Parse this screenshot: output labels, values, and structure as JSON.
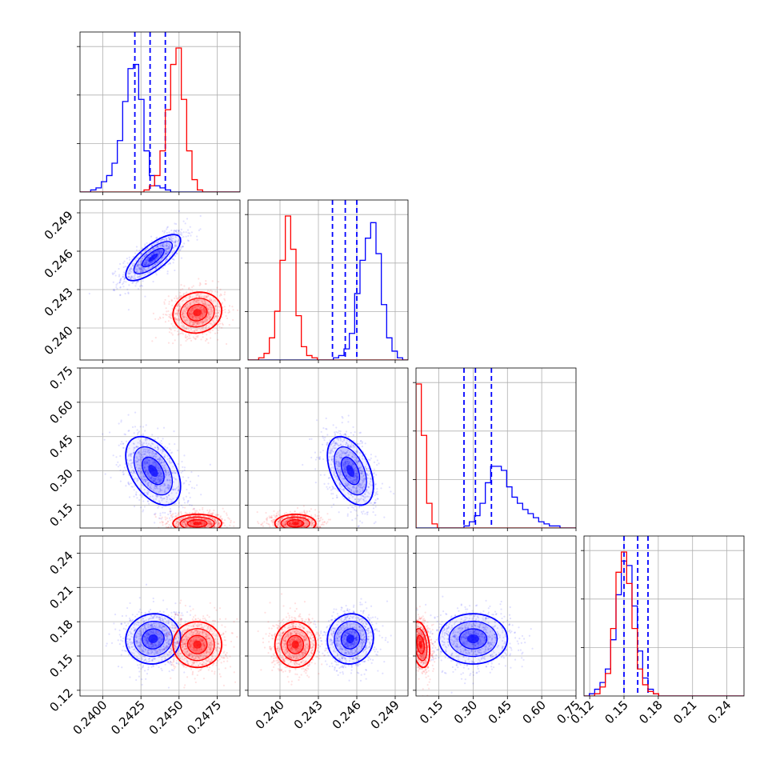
{
  "colors": {
    "blue_series": "#0000ff",
    "red_series": "#ff0000",
    "grid": "#b0b0b0"
  },
  "chart_data": {
    "type": "corner",
    "parameters": [
      {
        "id": "p1",
        "range": [
          0.2385,
          0.249
        ],
        "ticks": [
          0.24,
          0.2425,
          0.245,
          0.2475
        ],
        "tick_labels": [
          "0.2400",
          "0.2425",
          "0.2450",
          "0.2475"
        ]
      },
      {
        "id": "p2",
        "range": [
          0.2375,
          0.25
        ],
        "ticks": [
          0.24,
          0.243,
          0.246,
          0.249
        ],
        "tick_labels": [
          "0.240",
          "0.243",
          "0.246",
          "0.249"
        ]
      },
      {
        "id": "p3",
        "range": [
          0.05,
          0.75
        ],
        "ticks": [
          0.15,
          0.3,
          0.45,
          0.6,
          0.75
        ],
        "tick_labels": [
          "0.15",
          "0.30",
          "0.45",
          "0.60",
          "0.75"
        ]
      },
      {
        "id": "p4",
        "range": [
          0.115,
          0.255
        ],
        "ticks": [
          0.12,
          0.15,
          0.18,
          0.21,
          0.24
        ],
        "tick_labels": [
          "0.12",
          "0.15",
          "0.18",
          "0.21",
          "0.24"
        ]
      }
    ],
    "grid": true,
    "series": [
      {
        "color": "#0000ff",
        "means": [
          0.2433,
          0.2455,
          0.3,
          0.165
        ],
        "stds": [
          0.0009,
          0.0009,
          0.075,
          0.011
        ],
        "correlations": {
          "1-0": 0.75,
          "2-0": -0.45,
          "2-1": -0.45,
          "3-0": 0.05,
          "3-1": 0.05,
          "3-2": 0.0
        },
        "quantiles": [
          [
            0.2421,
            0.2431,
            0.2441
          ],
          [
            0.2441,
            0.2451,
            0.246
          ],
          [
            0.26,
            0.31,
            0.38
          ],
          [
            0.15,
            0.162,
            0.171
          ]
        ],
        "hist_1d": [
          {
            "edges": [
              0.2385,
              0.249
            ],
            "counts": [
              0,
              0,
              1,
              2,
              5,
              8,
              14,
              25,
              44,
              60,
              62,
              45,
              20,
              8,
              3,
              2,
              1,
              0,
              0,
              0,
              0,
              0,
              0,
              0,
              0,
              0,
              0,
              0,
              0,
              0
            ]
          },
          {
            "edges": [
              0.2375,
              0.25
            ],
            "counts": [
              0,
              0,
              0,
              0,
              0,
              0,
              0,
              0,
              0,
              0,
              0,
              0,
              0,
              0,
              0,
              0,
              1,
              2,
              5,
              12,
              30,
              45,
              55,
              62,
              48,
              25,
              10,
              4,
              1,
              0
            ]
          },
          {
            "edges": [
              0.05,
              0.75
            ],
            "counts": [
              0,
              0,
              0,
              0,
              0,
              0,
              0,
              0,
              0,
              1,
              3,
              6,
              12,
              22,
              30,
              30,
              28,
              20,
              15,
              12,
              9,
              7,
              5,
              3,
              2,
              1,
              1,
              0,
              0,
              0
            ]
          },
          {
            "edges": [
              0.115,
              0.255
            ],
            "counts": [
              0,
              1,
              3,
              6,
              12,
              25,
              45,
              60,
              58,
              40,
              20,
              8,
              3,
              1,
              0,
              0,
              0,
              0,
              0,
              0,
              0,
              0,
              0,
              0,
              0,
              0,
              0,
              0,
              0,
              0
            ]
          }
        ]
      },
      {
        "color": "#ff0000",
        "means": [
          0.2462,
          0.2412,
          0.07,
          0.16
        ],
        "stds": [
          0.0008,
          0.0008,
          0.02,
          0.01
        ],
        "correlations": {
          "1-0": 0.1,
          "2-0": 0.0,
          "2-1": 0.0,
          "3-0": 0.0,
          "3-1": 0.0,
          "3-2": -0.3
        },
        "hist_1d": [
          {
            "edges": [
              0.2385,
              0.249
            ],
            "counts": [
              0,
              0,
              0,
              0,
              0,
              0,
              0,
              0,
              0,
              0,
              0,
              0,
              1,
              3,
              8,
              20,
              40,
              62,
              70,
              45,
              20,
              6,
              1,
              0,
              0,
              0,
              0,
              0,
              0,
              0
            ]
          },
          {
            "edges": [
              0.2375,
              0.25
            ],
            "counts": [
              0,
              0,
              1,
              3,
              10,
              22,
              45,
              65,
              50,
              20,
              6,
              2,
              1,
              0,
              0,
              0,
              0,
              0,
              0,
              0,
              0,
              0,
              0,
              0,
              0,
              0,
              0,
              0,
              0,
              0
            ]
          },
          {
            "edges": [
              0.05,
              0.75
            ],
            "counts": [
              70,
              45,
              12,
              2,
              0,
              0,
              0,
              0,
              0,
              0,
              0,
              0,
              0,
              0,
              0,
              0,
              0,
              0,
              0,
              0,
              0,
              0,
              0,
              0,
              0,
              0,
              0,
              0,
              0,
              0
            ]
          },
          {
            "edges": [
              0.115,
              0.255
            ],
            "counts": [
              0,
              0,
              1,
              4,
              10,
              30,
              55,
              64,
              50,
              30,
              12,
              5,
              2,
              1,
              0,
              0,
              0,
              0,
              0,
              0,
              0,
              0,
              0,
              0,
              0,
              0,
              0,
              0,
              0,
              0
            ]
          }
        ]
      }
    ]
  }
}
